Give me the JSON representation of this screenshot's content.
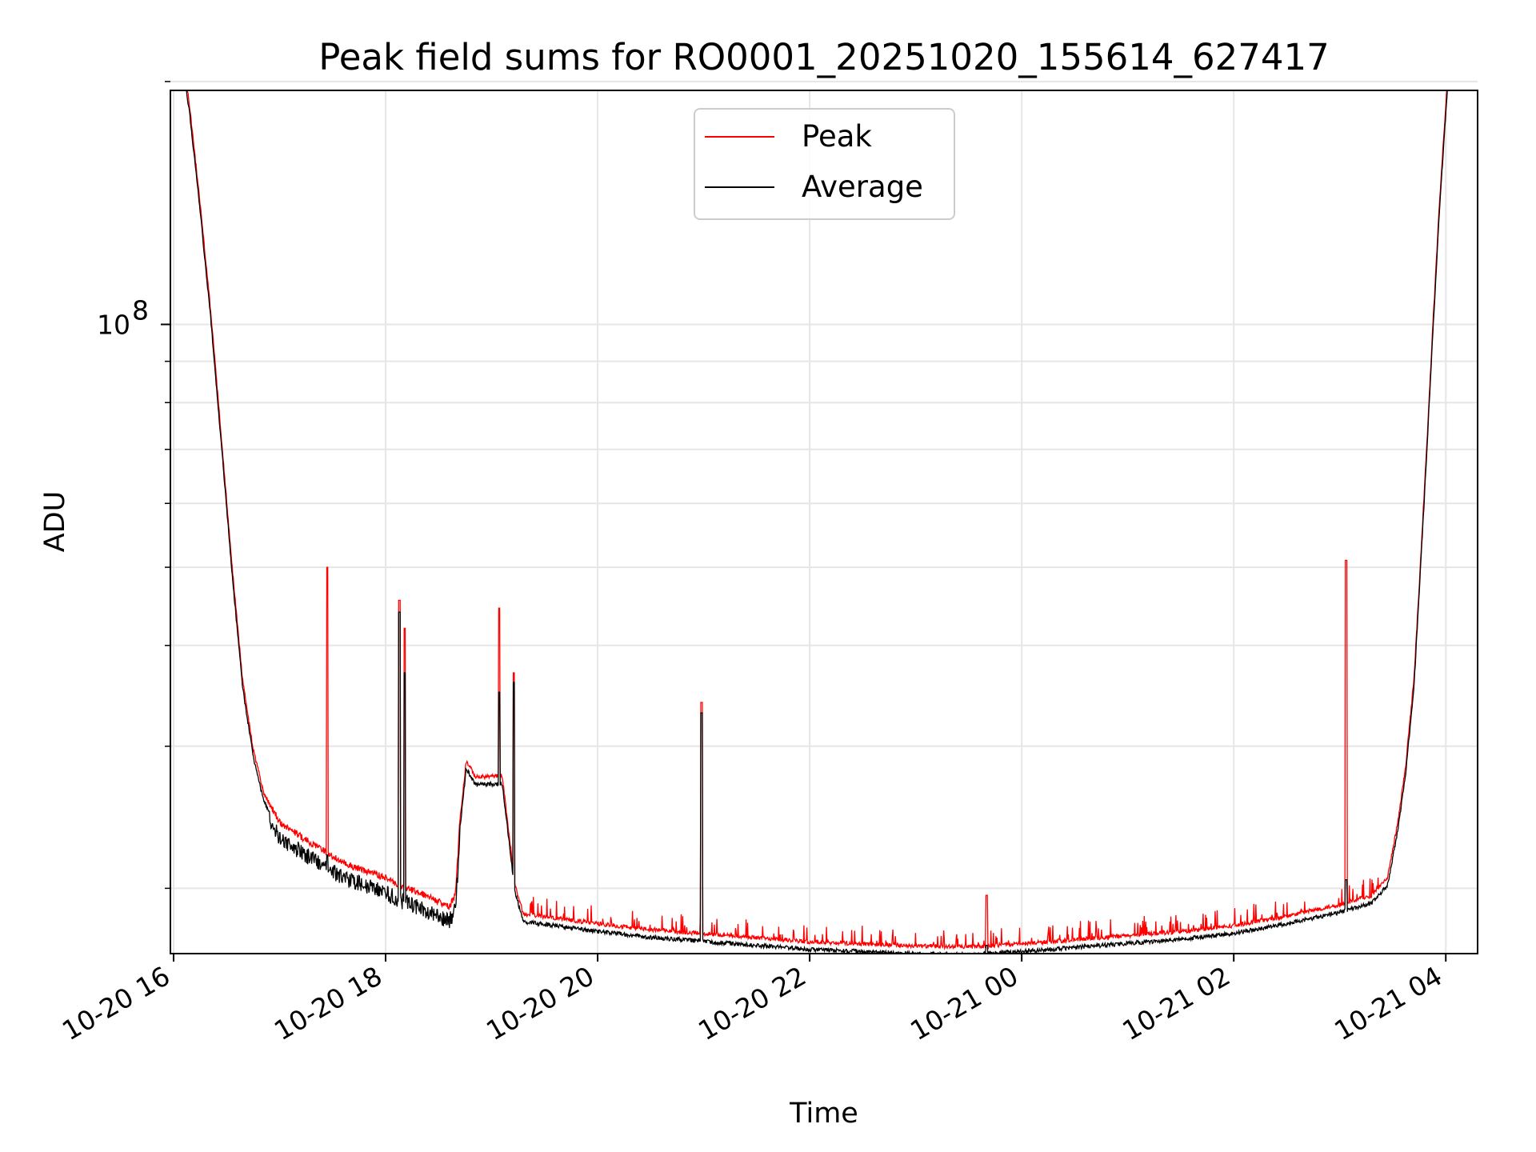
{
  "chart_data": {
    "type": "line",
    "title": "Peak field sums for RO0001_20251020_155614_627417",
    "xlabel": "Time",
    "ylabel": "ADU",
    "yscale": "log",
    "xlim_hours": [
      15.97,
      28.3
    ],
    "ylim": [
      16600000,
      195000000
    ],
    "grid": true,
    "legend_position": "top-center",
    "x_ticks": [
      {
        "hour": 16,
        "label": "10-20 16"
      },
      {
        "hour": 18,
        "label": "10-20 18"
      },
      {
        "hour": 20,
        "label": "10-20 20"
      },
      {
        "hour": 22,
        "label": "10-20 22"
      },
      {
        "hour": 24,
        "label": "10-21 00"
      },
      {
        "hour": 26,
        "label": "10-21 02"
      },
      {
        "hour": 28,
        "label": "10-21 04"
      }
    ],
    "y_major_ticks": [
      {
        "value": 100000000,
        "base": "10",
        "exponent": "8"
      }
    ],
    "y_minor_ticks": [
      20000000,
      30000000,
      40000000,
      50000000,
      60000000,
      70000000,
      80000000,
      90000000,
      200000000
    ],
    "series": [
      {
        "name": "Peak",
        "color": "#ff0000",
        "line_width": 1
      },
      {
        "name": "Average",
        "color": "#000000",
        "line_width": 1
      }
    ],
    "baseline_points": [
      [
        16.05,
        230000000
      ],
      [
        16.15,
        185000000
      ],
      [
        16.25,
        140000000
      ],
      [
        16.35,
        103000000
      ],
      [
        16.45,
        72000000
      ],
      [
        16.55,
        50000000
      ],
      [
        16.65,
        36000000
      ],
      [
        16.75,
        29500000
      ],
      [
        16.85,
        26000000
      ],
      [
        17.0,
        23900000
      ],
      [
        17.3,
        22500000
      ],
      [
        17.6,
        21300000
      ],
      [
        18.0,
        20400000
      ],
      [
        18.13,
        20000000
      ],
      [
        18.3,
        19600000
      ],
      [
        18.6,
        18800000
      ],
      [
        18.66,
        19500000
      ],
      [
        18.7,
        24000000
      ],
      [
        18.76,
        28500000
      ],
      [
        18.85,
        27200000
      ],
      [
        19.1,
        27300000
      ],
      [
        19.22,
        20000000
      ],
      [
        19.3,
        18400000
      ],
      [
        19.6,
        18200000
      ],
      [
        20.0,
        17900000
      ],
      [
        20.5,
        17600000
      ],
      [
        21.0,
        17400000
      ],
      [
        21.5,
        17200000
      ],
      [
        22.0,
        17000000
      ],
      [
        22.5,
        16900000
      ],
      [
        23.0,
        16800000
      ],
      [
        23.5,
        16750000
      ],
      [
        24.0,
        16900000
      ],
      [
        24.5,
        17100000
      ],
      [
        25.0,
        17300000
      ],
      [
        25.5,
        17500000
      ],
      [
        26.0,
        17800000
      ],
      [
        26.5,
        18300000
      ],
      [
        27.0,
        18900000
      ],
      [
        27.3,
        19400000
      ],
      [
        27.45,
        20400000
      ],
      [
        27.55,
        24000000
      ],
      [
        27.62,
        28000000
      ],
      [
        27.7,
        36000000
      ],
      [
        27.76,
        50000000
      ],
      [
        27.82,
        70000000
      ],
      [
        27.88,
        100000000
      ],
      [
        27.94,
        140000000
      ],
      [
        28.0,
        185000000
      ],
      [
        28.05,
        230000000
      ]
    ],
    "spikes": [
      {
        "hour": 17.45,
        "peak": 50000000,
        "average": 22000000
      },
      {
        "hour": 18.13,
        "peak": 45500000,
        "average": 44000000
      },
      {
        "hour": 18.18,
        "peak": 42000000,
        "average": 37000000
      },
      {
        "hour": 19.07,
        "peak": 44500000,
        "average": 35000000
      },
      {
        "hour": 19.21,
        "peak": 37000000,
        "average": 36000000
      },
      {
        "hour": 20.98,
        "peak": 34000000,
        "average": 33000000
      },
      {
        "hour": 23.67,
        "peak": 19600000,
        "average": 17000000
      },
      {
        "hour": 27.06,
        "peak": 51000000,
        "average": 20500000
      }
    ]
  }
}
